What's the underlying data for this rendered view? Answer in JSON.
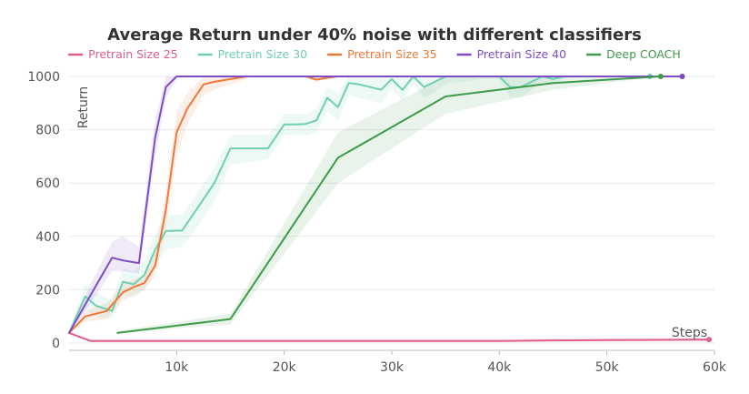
{
  "chart_data": {
    "type": "line",
    "title": "Average Return under 40% noise with different classifiers",
    "xlabel": "Steps",
    "ylabel": "Return",
    "xlim": [
      0,
      60000
    ],
    "ylim": [
      0,
      1000
    ],
    "xticks": [
      10000,
      20000,
      30000,
      40000,
      50000,
      60000
    ],
    "xtick_labels": [
      "10k",
      "20k",
      "30k",
      "40k",
      "50k",
      "60k"
    ],
    "yticks": [
      0,
      200,
      400,
      600,
      800,
      1000
    ],
    "ytick_labels": [
      "0",
      "200",
      "400",
      "600",
      "800",
      "1000"
    ],
    "grid": true,
    "legend_position": "top",
    "series": [
      {
        "name": "Pretrain Size 25",
        "color": "#e05c8c",
        "x": [
          0,
          2000,
          10000,
          20000,
          30000,
          40000,
          45000,
          50000,
          55000,
          59500
        ],
        "y": [
          38,
          8,
          8,
          8,
          8,
          8,
          10,
          11,
          12,
          13
        ],
        "lower": [
          38,
          4,
          4,
          4,
          4,
          4,
          5,
          5,
          6,
          6
        ],
        "upper": [
          38,
          14,
          14,
          14,
          14,
          14,
          18,
          20,
          20,
          20
        ]
      },
      {
        "name": "Pretrain Size 30",
        "color": "#6fcfb0",
        "x": [
          0,
          1500,
          2500,
          4000,
          5000,
          6000,
          7000,
          8000,
          9000,
          10500,
          12000,
          13500,
          15000,
          17000,
          18500,
          20000,
          21000,
          22000,
          23000,
          24000,
          25000,
          26000,
          27000,
          28000,
          29000,
          30000,
          31000,
          32000,
          33000,
          34000,
          35000,
          36000,
          37000,
          38000,
          39000,
          40000,
          41000,
          42000,
          43000,
          44000,
          45000,
          46000,
          47000,
          48000,
          49000,
          50000,
          52000,
          54000
        ],
        "y": [
          38,
          175,
          140,
          120,
          230,
          220,
          255,
          350,
          420,
          422,
          510,
          600,
          730,
          730,
          730,
          820,
          820,
          822,
          835,
          920,
          885,
          975,
          970,
          960,
          950,
          990,
          950,
          1000,
          960,
          980,
          1000,
          1000,
          1000,
          1000,
          1000,
          1000,
          960,
          960,
          980,
          1000,
          990,
          1000,
          1000,
          1000,
          1000,
          1000,
          1000,
          1000
        ],
        "lower": [
          38,
          120,
          100,
          90,
          180,
          170,
          200,
          290,
          350,
          360,
          440,
          530,
          670,
          680,
          690,
          780,
          780,
          780,
          790,
          870,
          830,
          930,
          920,
          910,
          900,
          950,
          910,
          970,
          920,
          940,
          970,
          980,
          980,
          990,
          990,
          990,
          920,
          920,
          950,
          980,
          970,
          990,
          1000,
          1000,
          1000,
          1000,
          1000,
          1000
        ],
        "upper": [
          38,
          220,
          190,
          160,
          280,
          270,
          310,
          410,
          480,
          480,
          570,
          660,
          780,
          780,
          780,
          860,
          860,
          860,
          880,
          960,
          940,
          1000,
          1000,
          1000,
          1000,
          1000,
          1000,
          1000,
          1000,
          1000,
          1000,
          1000,
          1000,
          1000,
          1000,
          1000,
          1000,
          1000,
          1000,
          1000,
          1000,
          1000,
          1000,
          1000,
          1000,
          1000,
          1000,
          1000
        ]
      },
      {
        "name": "Pretrain Size 35",
        "color": "#ee7838",
        "x": [
          0,
          1500,
          3500,
          5000,
          6000,
          7000,
          8000,
          9000,
          10000,
          11000,
          12500,
          13500,
          15000,
          16500,
          17000,
          18000,
          20000,
          22000,
          23000,
          24000,
          25000,
          30000,
          40000,
          50000,
          57000
        ],
        "y": [
          38,
          100,
          120,
          190,
          210,
          225,
          290,
          500,
          790,
          880,
          970,
          980,
          990,
          1000,
          1000,
          1000,
          1000,
          1000,
          988,
          995,
          1000,
          1000,
          1000,
          1000,
          1000
        ],
        "lower": [
          38,
          80,
          90,
          160,
          180,
          200,
          250,
          430,
          700,
          820,
          930,
          950,
          970,
          990,
          1000,
          1000,
          1000,
          1000,
          980,
          990,
          1000,
          1000,
          1000,
          1000,
          1000
        ],
        "upper": [
          38,
          120,
          150,
          220,
          240,
          250,
          340,
          570,
          870,
          940,
          1000,
          1000,
          1000,
          1000,
          1000,
          1000,
          1000,
          1000,
          1000,
          1000,
          1000,
          1000,
          1000,
          1000,
          1000
        ]
      },
      {
        "name": "Pretrain Size 40",
        "color": "#7e4cc7",
        "x": [
          0,
          2000,
          4000,
          5000,
          6500,
          8000,
          9000,
          10000,
          11000,
          20000,
          30000,
          40000,
          50000,
          57000
        ],
        "y": [
          38,
          180,
          320,
          310,
          300,
          770,
          960,
          1000,
          1000,
          1000,
          1000,
          1000,
          1000,
          1000
        ],
        "lower": [
          38,
          150,
          270,
          270,
          260,
          700,
          920,
          990,
          1000,
          1000,
          1000,
          1000,
          1000,
          1000
        ],
        "upper": [
          38,
          220,
          380,
          400,
          360,
          840,
          1000,
          1000,
          1000,
          1000,
          1000,
          1000,
          1000,
          1000
        ]
      },
      {
        "name": "Deep COACH",
        "color": "#3f9a4a",
        "x": [
          4500,
          15000,
          25000,
          35000,
          45000,
          55000
        ],
        "y": [
          38,
          90,
          695,
          925,
          975,
          1000
        ],
        "lower": [
          38,
          70,
          600,
          860,
          950,
          1000
        ],
        "upper": [
          45,
          110,
          790,
          1000,
          1000,
          1000
        ]
      }
    ]
  }
}
